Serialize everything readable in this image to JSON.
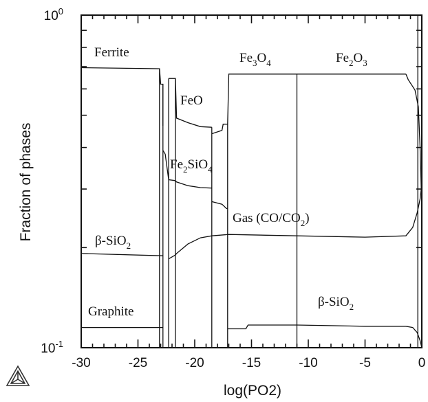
{
  "chart_data": {
    "type": "line",
    "xlabel": "log(PO2)",
    "ylabel": "Fraction of phases",
    "xlim": [
      -30,
      0
    ],
    "ylim": [
      0.1,
      1
    ],
    "y_scale": "log",
    "x_ticks": [
      "-30",
      "-25",
      "-20",
      "-15",
      "-10",
      "-5",
      "0"
    ],
    "y_ticks": [
      {
        "base": "10",
        "exp": "-1",
        "value": 0.1
      },
      {
        "base": "10",
        "exp": "0",
        "value": 1
      }
    ],
    "phase_labels": [
      {
        "id": "ferrite",
        "parts": [
          {
            "t": "Ferrite"
          }
        ]
      },
      {
        "id": "feo",
        "parts": [
          {
            "t": "FeO"
          }
        ]
      },
      {
        "id": "fe3o4",
        "parts": [
          {
            "t": "Fe"
          },
          {
            "t": "3",
            "sub": true
          },
          {
            "t": "O"
          },
          {
            "t": "4",
            "sub": true
          }
        ]
      },
      {
        "id": "fe2o3",
        "parts": [
          {
            "t": "Fe"
          },
          {
            "t": "2",
            "sub": true
          },
          {
            "t": "O"
          },
          {
            "t": "3",
            "sub": true
          }
        ]
      },
      {
        "id": "fe2sio4",
        "parts": [
          {
            "t": "Fe"
          },
          {
            "t": "2",
            "sub": true
          },
          {
            "t": "SiO"
          },
          {
            "t": "4",
            "sub": true
          }
        ]
      },
      {
        "id": "gas",
        "parts": [
          {
            "t": "Gas (CO/CO"
          },
          {
            "t": "2",
            "sub": true
          },
          {
            "t": ")"
          }
        ]
      },
      {
        "id": "sio2-left",
        "parts": [
          {
            "t": "β-SiO"
          },
          {
            "t": "2",
            "sub": true
          }
        ]
      },
      {
        "id": "graphite",
        "parts": [
          {
            "t": "Graphite"
          }
        ]
      },
      {
        "id": "sio2-right",
        "parts": [
          {
            "t": "β-SiO"
          },
          {
            "t": "2",
            "sub": true
          }
        ]
      }
    ],
    "series": [
      {
        "points": [
          [
            -30,
            0.695
          ],
          [
            -23.1,
            0.69
          ],
          [
            -23.0,
            0.62
          ],
          [
            -22.8,
            0.62
          ],
          [
            -22.8,
            0.465
          ]
        ]
      },
      {
        "points": [
          [
            -22.3,
            0.645
          ],
          [
            -21.7,
            0.645
          ],
          [
            -21.6,
            0.49
          ],
          [
            -20.6,
            0.475
          ],
          [
            -19.5,
            0.462
          ],
          [
            -18.5,
            0.46
          ]
        ]
      },
      {
        "points": [
          [
            -18.5,
            0.44
          ],
          [
            -17.6,
            0.45
          ],
          [
            -17.5,
            0.47
          ],
          [
            -17.1,
            0.47
          ],
          [
            -17.0,
            0.665
          ],
          [
            -11.1,
            0.665
          ],
          [
            -11.0,
            0.665
          ],
          [
            -1.4,
            0.665
          ]
        ]
      },
      {
        "points": [
          [
            -1.4,
            0.665
          ],
          [
            -1.2,
            0.64
          ],
          [
            -0.6,
            0.595
          ],
          [
            -0.3,
            0.53
          ],
          [
            -0.15,
            0.4
          ],
          [
            -0.05,
            0.3
          ]
        ]
      },
      {
        "points": [
          [
            -22.8,
            0.392
          ],
          [
            -22.6,
            0.382
          ],
          [
            -22.3,
            0.32
          ],
          [
            -21.7,
            0.318
          ],
          [
            -21.6,
            0.315
          ],
          [
            -20.6,
            0.307
          ],
          [
            -19.5,
            0.303
          ],
          [
            -18.5,
            0.302
          ]
        ]
      },
      {
        "points": [
          [
            -18.5,
            0.275
          ],
          [
            -17.6,
            0.27
          ],
          [
            -17.2,
            0.262
          ],
          [
            -17.1,
            0.262
          ]
        ]
      },
      {
        "points": [
          [
            -22.3,
            0.185
          ],
          [
            -21.7,
            0.19
          ],
          [
            -21.6,
            0.192
          ],
          [
            -20.6,
            0.205
          ],
          [
            -19.5,
            0.214
          ],
          [
            -18.5,
            0.217
          ],
          [
            -17.0,
            0.219
          ],
          [
            -11.0,
            0.217
          ],
          [
            -5.0,
            0.215
          ],
          [
            -1.4,
            0.217
          ],
          [
            -0.8,
            0.23
          ],
          [
            -0.4,
            0.255
          ],
          [
            -0.15,
            0.28
          ],
          [
            -0.05,
            0.3
          ]
        ]
      },
      {
        "points": [
          [
            -30,
            0.192
          ],
          [
            -22.8,
            0.189
          ]
        ]
      },
      {
        "points": [
          [
            -30,
            0.115
          ],
          [
            -22.8,
            0.115
          ]
        ]
      },
      {
        "points": [
          [
            -17.1,
            0.114
          ],
          [
            -15.5,
            0.114
          ],
          [
            -15.3,
            0.117
          ],
          [
            -11.0,
            0.117
          ],
          [
            -5.0,
            0.116
          ],
          [
            -1.4,
            0.116
          ],
          [
            -0.8,
            0.115
          ],
          [
            -0.4,
            0.111
          ],
          [
            -0.15,
            0.105
          ],
          [
            0,
            0.1
          ]
        ]
      },
      {
        "points": [
          [
            -23.1,
            0.1
          ],
          [
            -23.1,
            0.69
          ]
        ]
      },
      {
        "points": [
          [
            -22.8,
            0.1
          ],
          [
            -22.8,
            0.62
          ]
        ]
      },
      {
        "points": [
          [
            -22.3,
            0.1
          ],
          [
            -22.3,
            0.645
          ]
        ]
      },
      {
        "points": [
          [
            -21.7,
            0.1
          ],
          [
            -21.7,
            0.645
          ]
        ]
      },
      {
        "points": [
          [
            -18.5,
            0.1
          ],
          [
            -18.5,
            0.46
          ]
        ]
      },
      {
        "points": [
          [
            -17.1,
            0.1
          ],
          [
            -17.1,
            0.47
          ]
        ]
      },
      {
        "points": [
          [
            -11.0,
            0.1
          ],
          [
            -11.0,
            0.665
          ]
        ]
      },
      {
        "points": [
          [
            -0.35,
            0.1
          ],
          [
            -0.35,
            1.0
          ]
        ]
      }
    ]
  }
}
